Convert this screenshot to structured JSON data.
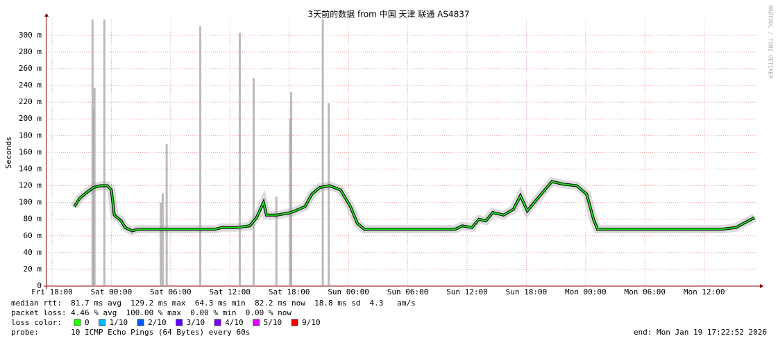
{
  "chart_data": {
    "type": "line",
    "title": "3天前的数据 from 中国 天津 联通 AS4837",
    "y_label": "Seconds",
    "watermark": "RRDTOOL / TOBI OETIKER",
    "xlim": [
      -0.56,
      71.5
    ],
    "xticks": [
      {
        "value": 0,
        "label": "Fri 18:00"
      },
      {
        "value": 6,
        "label": "Sat 00:00"
      },
      {
        "value": 12,
        "label": "Sat 06:00"
      },
      {
        "value": 18,
        "label": "Sat 12:00"
      },
      {
        "value": 24,
        "label": "Sat 18:00"
      },
      {
        "value": 30,
        "label": "Sun 00:00"
      },
      {
        "value": 36,
        "label": "Sun 06:00"
      },
      {
        "value": 42,
        "label": "Sun 12:00"
      },
      {
        "value": 48,
        "label": "Sun 18:00"
      },
      {
        "value": 54,
        "label": "Mon 00:00"
      },
      {
        "value": 60,
        "label": "Mon 06:00"
      },
      {
        "value": 66,
        "label": "Mon 12:00"
      }
    ],
    "ylim": [
      0,
      319
    ],
    "yticks": [
      0,
      {
        "value": 20,
        "label": "20 m"
      },
      {
        "value": 40,
        "label": "40 m"
      },
      {
        "value": 60,
        "label": "60 m"
      },
      {
        "value": 80,
        "label": "80 m"
      },
      {
        "value": 100,
        "label": "100 m"
      },
      {
        "value": 120,
        "label": "120 m"
      },
      {
        "value": 140,
        "label": "140 m"
      },
      {
        "value": 160,
        "label": "160 m"
      },
      {
        "value": 180,
        "label": "180 m"
      },
      {
        "value": 200,
        "label": "200 m"
      },
      {
        "value": 220,
        "label": "220 m"
      },
      {
        "value": 240,
        "label": "240 m"
      },
      {
        "value": 260,
        "label": "260 m"
      },
      {
        "value": 280,
        "label": "280 m"
      },
      {
        "value": 300,
        "label": "300 m"
      }
    ],
    "grid": true,
    "color": "#22dd22",
    "x": [
      2.25,
      2.8,
      3.5,
      4.2,
      4.9,
      5.6,
      6.0,
      6.3,
      7.0,
      7.4,
      8.1,
      8.4,
      8.8,
      16.5,
      17.2,
      18.6,
      20.0,
      20.7,
      21.4,
      21.7,
      22.8,
      24.2,
      25.6,
      26.3,
      27.1,
      28.1,
      29.2,
      30.2,
      30.9,
      31.6,
      40.8,
      41.5,
      42.5,
      43.2,
      43.9,
      44.6,
      45.7,
      46.7,
      47.4,
      48.1,
      48.8,
      49.5,
      50.6,
      51.7,
      53.1,
      54.1,
      54.8,
      55.2,
      67.8,
      69.2,
      70.3,
      71.1
    ],
    "values": [
      95,
      105,
      112,
      118,
      120,
      120,
      115,
      85,
      78,
      70,
      66,
      67,
      68,
      68,
      70,
      70,
      72,
      82,
      100,
      85,
      85,
      88,
      95,
      110,
      118,
      120,
      115,
      95,
      75,
      68,
      68,
      72,
      70,
      80,
      78,
      88,
      85,
      92,
      108,
      90,
      100,
      110,
      125,
      122,
      120,
      110,
      80,
      68,
      68,
      70,
      77,
      82
    ],
    "spikes": {
      "color": "#aaaaaa",
      "x": [
        4.1,
        4.2,
        4.3,
        5.3,
        11.0,
        11.2,
        11.6,
        15.0,
        19.0,
        20.4,
        22.7,
        24.1,
        24.2,
        27.4,
        28.0
      ],
      "values": [
        319,
        212,
        237,
        319,
        100,
        111,
        170,
        311,
        303,
        249,
        107,
        200,
        232,
        319,
        219
      ]
    },
    "stats": [
      "median rtt:  81.7 ms avg  129.2 ms max  64.3 ms min  82.2 ms now  18.8 ms sd  4.3   am/s",
      "packet loss: 4.46 % avg  100.00 % max  0.00 % min  0.00 % now"
    ],
    "legend": {
      "title": "loss color:",
      "items": [
        {
          "label": "0",
          "color": "#26ff00"
        },
        {
          "label": "1/10",
          "color": "#00b8ff"
        },
        {
          "label": "2/10",
          "color": "#0059ff"
        },
        {
          "label": "3/10",
          "color": "#5e00ff"
        },
        {
          "label": "4/10",
          "color": "#7e00ff"
        },
        {
          "label": "5/10",
          "color": "#dd00ff"
        },
        {
          "label": "9/10",
          "color": "#ff0000"
        }
      ]
    },
    "probe": "probe:       10 ICMP Echo Pings (64 Bytes) every 60s",
    "end": "end: Mon Jan 19 17:22:52 2026"
  }
}
